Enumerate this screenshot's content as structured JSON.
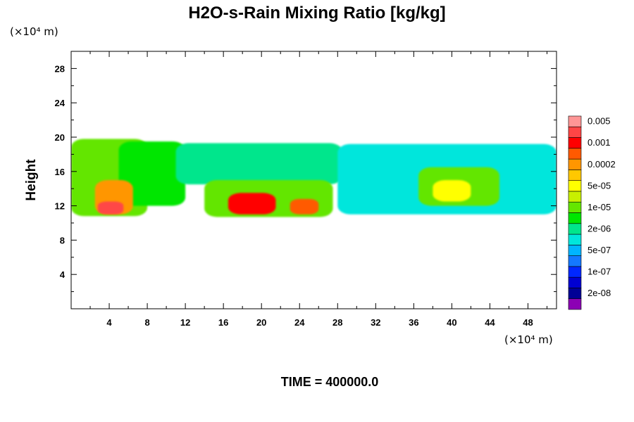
{
  "chart_data": {
    "type": "heatmap",
    "title": "H2O-s-Rain Mixing Ratio [kg/kg]",
    "xlabel": "",
    "ylabel": "Height",
    "x_unit_label": "(×10⁴ m)",
    "y_unit_label": "(×10⁴ m)",
    "xlim": [
      0,
      51
    ],
    "ylim": [
      0,
      30
    ],
    "x_ticks": [
      4,
      8,
      12,
      16,
      20,
      24,
      28,
      32,
      36,
      40,
      44,
      48
    ],
    "y_ticks": [
      4,
      8,
      12,
      16,
      20,
      24,
      28
    ],
    "x_tick_labels": [
      "4",
      "8",
      "12",
      "16",
      "20",
      "24",
      "28",
      "32",
      "36",
      "40",
      "44",
      "48"
    ],
    "y_tick_labels": [
      "4",
      "8",
      "12",
      "16",
      "20",
      "24",
      "28"
    ],
    "footer": "TIME = 400000.0",
    "colorbar": {
      "colors": [
        "#8c00b4",
        "#000096",
        "#0000d2",
        "#0028ff",
        "#1478ff",
        "#00b4ff",
        "#00e6dc",
        "#00e68c",
        "#00e600",
        "#64e600",
        "#c8f000",
        "#ffff00",
        "#ffc800",
        "#ff9600",
        "#ff5a00",
        "#ff0000",
        "#ff4646",
        "#ff9696"
      ],
      "labels": [
        "2e-08",
        "1e-07",
        "5e-07",
        "2e-06",
        "1e-05",
        "5e-05",
        "0.0002",
        "0.001",
        "0.005"
      ],
      "label_boundaries": [
        2,
        4,
        6,
        8,
        10,
        12,
        14,
        16,
        18
      ]
    },
    "field_blobs": [
      {
        "x": [
          0,
          8
        ],
        "y": [
          10.8,
          19.8
        ],
        "level": 9
      },
      {
        "x": [
          5,
          12
        ],
        "y": [
          12,
          19.5
        ],
        "level": 8
      },
      {
        "x": [
          11,
          28.5
        ],
        "y": [
          14.5,
          19.3
        ],
        "level": 7
      },
      {
        "x": [
          14,
          27.5
        ],
        "y": [
          10.7,
          15
        ],
        "level": 9
      },
      {
        "x": [
          28,
          51
        ],
        "y": [
          11,
          19.2
        ],
        "level": 6
      },
      {
        "x": [
          2.5,
          6.5
        ],
        "y": [
          11,
          15
        ],
        "level": 13
      },
      {
        "x": [
          2.8,
          5.5
        ],
        "y": [
          11,
          12.5
        ],
        "level": 16
      },
      {
        "x": [
          16.5,
          21.5
        ],
        "y": [
          11,
          13.5
        ],
        "level": 15
      },
      {
        "x": [
          23,
          26
        ],
        "y": [
          11,
          12.8
        ],
        "level": 14
      },
      {
        "x": [
          36.5,
          45
        ],
        "y": [
          12,
          16.5
        ],
        "level": 9
      },
      {
        "x": [
          38,
          42
        ],
        "y": [
          12.5,
          15
        ],
        "level": 11
      }
    ]
  }
}
